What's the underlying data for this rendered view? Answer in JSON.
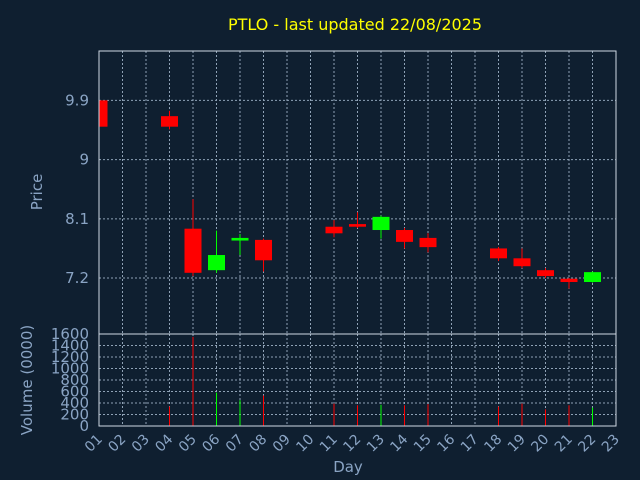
{
  "chart_data": {
    "type": "candlestick",
    "title": "PTLO - last updated 22/08/2025",
    "xlabel": "Day",
    "ylabel": "Price",
    "volume_label": "Volume (0000)",
    "x_ticks": [
      "01",
      "02",
      "03",
      "04",
      "05",
      "06",
      "07",
      "08",
      "09",
      "10",
      "11",
      "12",
      "13",
      "14",
      "15",
      "16",
      "17",
      "18",
      "19",
      "20",
      "21",
      "22",
      "23"
    ],
    "y_ticks": [
      7.2,
      8.1,
      9,
      9.9
    ],
    "y_tick_labels": [
      "7.2",
      "8.1",
      "9",
      "9.9"
    ],
    "ylim": [
      6.35,
      10.65
    ],
    "volume_ticks": [
      0,
      200,
      400,
      600,
      800,
      1000,
      1200,
      1400,
      1600
    ],
    "volume_ylim": [
      0,
      1600
    ],
    "grid": true,
    "colors": {
      "background": "#0f1f30",
      "plot_border": "#cfd8e3",
      "grid": "#8fa2b6",
      "title": "#ffff00",
      "axis_text": "#8aa4c4",
      "up": "#00ff00",
      "down": "#ff0000"
    },
    "candles": [
      {
        "day": "01",
        "open": 9.9,
        "close": 9.5,
        "high": 9.9,
        "low": 9.5,
        "volume": 0
      },
      {
        "day": "04",
        "open": 9.66,
        "close": 9.5,
        "high": 9.74,
        "low": 9.46,
        "volume": 340
      },
      {
        "day": "05",
        "open": 7.95,
        "close": 7.28,
        "high": 8.4,
        "low": 7.23,
        "volume": 1550
      },
      {
        "day": "06",
        "open": 7.32,
        "close": 7.55,
        "high": 7.92,
        "low": 7.28,
        "volume": 580
      },
      {
        "day": "07",
        "open": 7.77,
        "close": 7.81,
        "high": 7.87,
        "low": 7.55,
        "volume": 450
      },
      {
        "day": "08",
        "open": 7.78,
        "close": 7.47,
        "high": 7.8,
        "low": 7.3,
        "volume": 530
      },
      {
        "day": "11",
        "open": 7.98,
        "close": 7.88,
        "high": 8.08,
        "low": 7.82,
        "volume": 390
      },
      {
        "day": "12",
        "open": 8.02,
        "close": 7.98,
        "high": 8.2,
        "low": 7.96,
        "volume": 360
      },
      {
        "day": "13",
        "open": 7.93,
        "close": 8.13,
        "high": 8.15,
        "low": 7.8,
        "volume": 370
      },
      {
        "day": "14",
        "open": 7.93,
        "close": 7.75,
        "high": 7.96,
        "low": 7.65,
        "volume": 360
      },
      {
        "day": "15",
        "open": 7.81,
        "close": 7.67,
        "high": 7.88,
        "low": 7.59,
        "volume": 380
      },
      {
        "day": "18",
        "open": 7.65,
        "close": 7.5,
        "high": 7.67,
        "low": 7.46,
        "volume": 340
      },
      {
        "day": "19",
        "open": 7.5,
        "close": 7.38,
        "high": 7.65,
        "low": 7.35,
        "volume": 390
      },
      {
        "day": "20",
        "open": 7.32,
        "close": 7.23,
        "high": 7.35,
        "low": 7.2,
        "volume": 290
      },
      {
        "day": "21",
        "open": 7.19,
        "close": 7.14,
        "high": 7.2,
        "low": 7.04,
        "volume": 360
      },
      {
        "day": "22",
        "open": 7.14,
        "close": 7.29,
        "high": 7.3,
        "low": 7.13,
        "volume": 320
      }
    ]
  }
}
